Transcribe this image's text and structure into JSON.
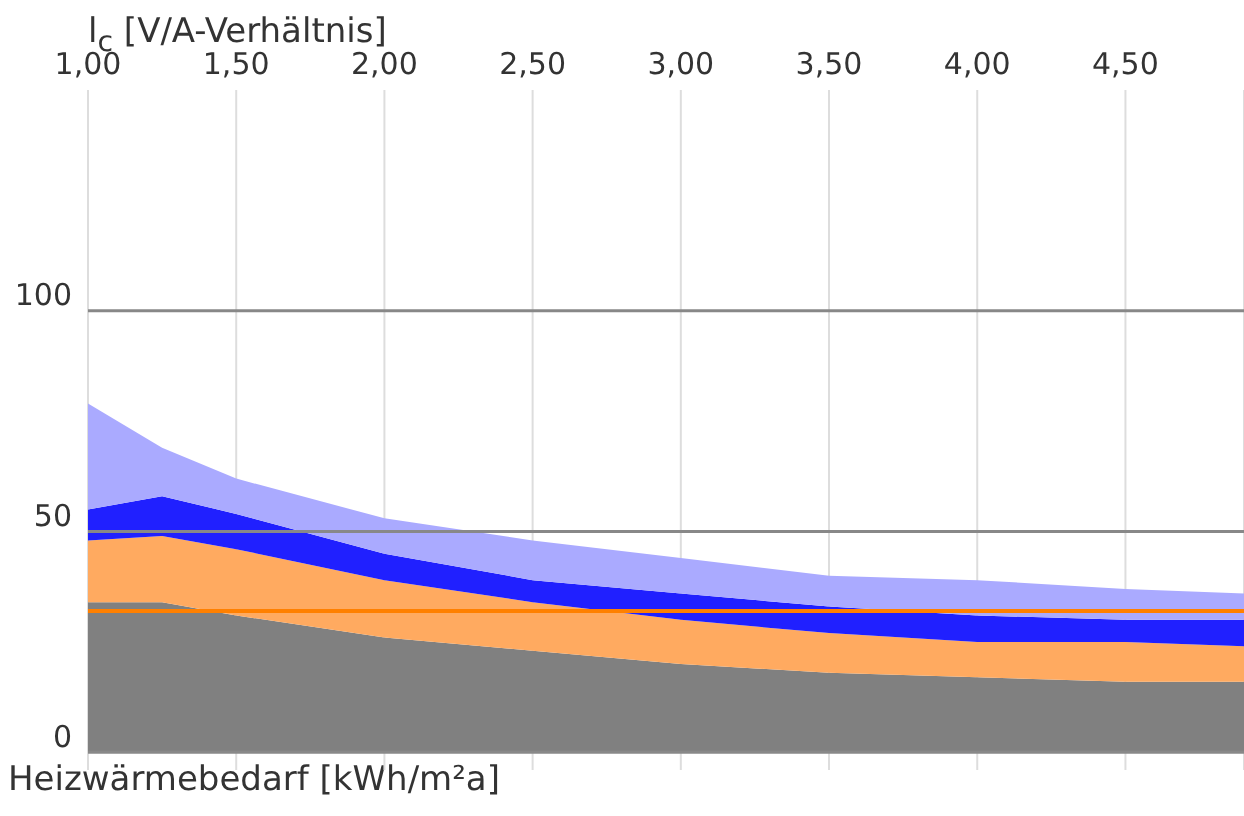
{
  "chart_data": {
    "type": "area",
    "stacked": true,
    "xlabel": "l$_{c}$ [V/A-Verhältnis]",
    "ylabel": "Heizwärmebedarf [kWh/m²a]",
    "x": [
      1,
      1.25,
      1.5,
      2,
      2.5,
      3,
      3.5,
      4,
      4.5,
      4.9
    ],
    "series": [
      {
        "color": "#808080",
        "values": [
          34,
          34,
          31,
          26,
          23,
          20,
          18,
          17,
          16,
          16
        ]
      },
      {
        "color": "#ffaa60",
        "values": [
          14,
          15,
          15,
          13,
          11,
          10,
          9,
          8,
          9,
          8
        ]
      },
      {
        "color": "#2020ff",
        "values": [
          7,
          9,
          8,
          6,
          5,
          6,
          6,
          6,
          5,
          6
        ]
      },
      {
        "color": "#aaaaff",
        "values": [
          24,
          11,
          8,
          8,
          9,
          8,
          7,
          8,
          7,
          6
        ]
      }
    ],
    "xlim": [
      1,
      4.9
    ],
    "xticks": [
      {
        "value": 1,
        "label": "1,00"
      },
      {
        "value": 1.5,
        "label": "1,50"
      },
      {
        "value": 2,
        "label": "2,00"
      },
      {
        "value": 2.5,
        "label": "2,50"
      },
      {
        "value": 3,
        "label": "3,00"
      },
      {
        "value": 3.5,
        "label": "3,50"
      },
      {
        "value": 4,
        "label": "4,00"
      },
      {
        "value": 4.5,
        "label": "4,50"
      }
    ],
    "ylim": [
      -4,
      150
    ],
    "yticks": [
      0,
      50,
      100
    ],
    "ref_lines": [
      {
        "axis": "y",
        "value": 32,
        "color": "#ff8000"
      }
    ],
    "grid": true,
    "legend": false
  }
}
